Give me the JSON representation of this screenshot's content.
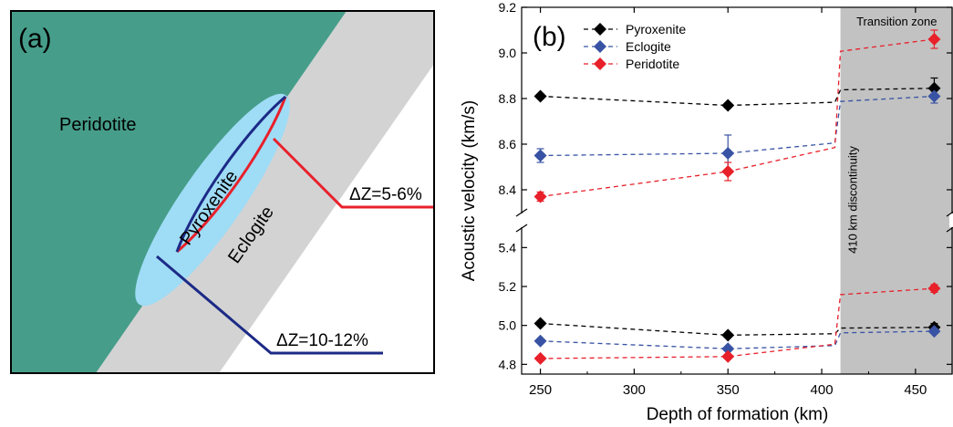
{
  "panel_a": {
    "label": "(a)",
    "region_labels": {
      "peridotite": "Peridotite",
      "pyroxenite": "Pyroxenite",
      "eclogite": "Eclogite"
    },
    "annotations": {
      "eclogite_dz": "ΔZ=5-6%",
      "pyroxenite_dz": "ΔZ=10-12%"
    },
    "colors": {
      "peridotite": "#469e8a",
      "slab": "#d3d3d4",
      "pyroxenite_fill": "#9fdcf6",
      "outline_blue": "#1c2a86",
      "outline_red": "#e8202a"
    }
  },
  "panel_b": {
    "label": "(b)",
    "transition_zone_label": "Transition zone",
    "discontinuity_label": "410 km discontinuity",
    "colors": {
      "Pyroxenite": "#000000",
      "Eclogite": "#3953a4",
      "Peridotite": "#e8202a",
      "transition_zone": "#c2c2c2"
    }
  },
  "chart_data": {
    "type": "scatter",
    "xlabel": "Depth of formation (km)",
    "ylabel": "Acoustic velocity (km/s)",
    "xlim": [
      240,
      470
    ],
    "x_ticks": [
      250,
      300,
      350,
      400,
      450
    ],
    "broken_y_axis": true,
    "ylim_upper": [
      8.3,
      9.2
    ],
    "ylim_lower": [
      4.75,
      5.5
    ],
    "y_ticks_upper": [
      "8.4",
      "8.6",
      "8.8",
      "9.0",
      "9.2"
    ],
    "y_ticks_lower": [
      "4.8",
      "5.0",
      "5.2",
      "5.4"
    ],
    "legend_position": "top-left",
    "transition_zone_start": 410,
    "series": [
      {
        "name": "Pyroxenite",
        "upper": {
          "x": [
            250,
            350,
            460
          ],
          "y": [
            8.81,
            8.77,
            8.845
          ],
          "err": [
            0.01,
            0.01,
            0.045
          ]
        },
        "lower": {
          "x": [
            250,
            350,
            460
          ],
          "y": [
            5.01,
            4.95,
            4.99
          ],
          "err": [
            0.01,
            0.01,
            0.02
          ]
        }
      },
      {
        "name": "Eclogite",
        "upper": {
          "x": [
            250,
            350,
            460
          ],
          "y": [
            8.55,
            8.56,
            8.81
          ],
          "err": [
            0.03,
            0.08,
            0.03
          ]
        },
        "lower": {
          "x": [
            250,
            350,
            460
          ],
          "y": [
            4.92,
            4.88,
            4.97
          ],
          "err": [
            0.01,
            0.01,
            0.01
          ]
        }
      },
      {
        "name": "Peridotite",
        "upper": {
          "x": [
            250,
            350,
            460
          ],
          "y": [
            8.37,
            8.48,
            9.06
          ],
          "err": [
            0.02,
            0.04,
            0.04
          ]
        },
        "lower": {
          "x": [
            250,
            350,
            460
          ],
          "y": [
            4.83,
            4.84,
            5.19
          ],
          "err": [
            0.01,
            0.01,
            0.02
          ]
        }
      }
    ]
  }
}
